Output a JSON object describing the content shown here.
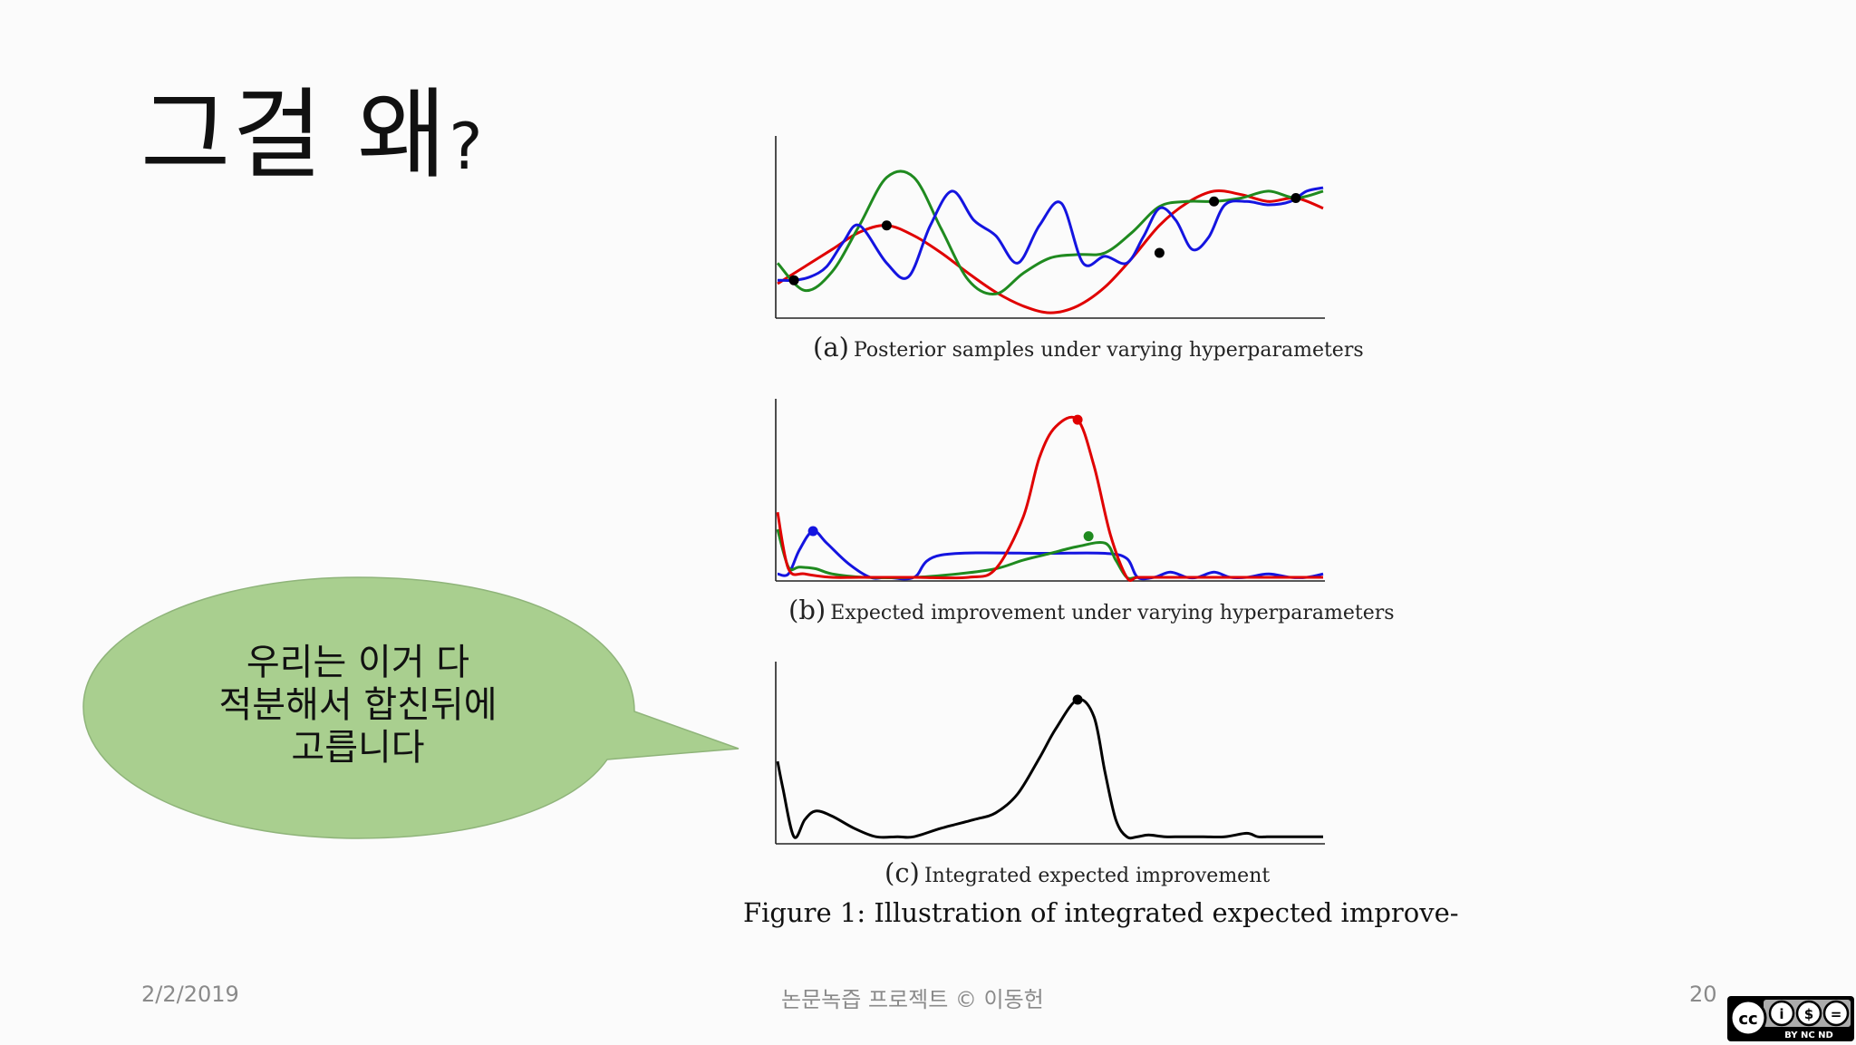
{
  "slide": {
    "title": "그걸 왜",
    "title_mark": "?",
    "bubble_lines": [
      "우리는 이거 다",
      "적분해서 합친뒤에",
      "고릅니다"
    ],
    "footer_date": "2/2/2019",
    "footer_center": "논문녹즙 프로젝트 © 이동헌",
    "page_number": "20",
    "license_badge": "BY NC ND",
    "bubble_color": "#a9cf8f"
  },
  "figure_caption": "Figure 1: Illustration of integrated expected improve-",
  "chart_data": [
    {
      "type": "line",
      "panel_label": "(a)",
      "caption": "Posterior samples under varying hyperparameters",
      "xlim": [
        0,
        1
      ],
      "ylim": [
        0,
        1
      ],
      "grid": false,
      "series": [
        {
          "color": "#e00000",
          "x": [
            0,
            0.05,
            0.1,
            0.15,
            0.2,
            0.25,
            0.3,
            0.35,
            0.4,
            0.45,
            0.5,
            0.55,
            0.6,
            0.65,
            0.7,
            0.75,
            0.8,
            0.85,
            0.9,
            0.95,
            1
          ],
          "y": [
            0.18,
            0.28,
            0.38,
            0.48,
            0.52,
            0.46,
            0.36,
            0.24,
            0.13,
            0.05,
            0.01,
            0.05,
            0.16,
            0.33,
            0.52,
            0.65,
            0.72,
            0.7,
            0.66,
            0.68,
            0.62
          ]
        },
        {
          "color": "#1f8a1f",
          "x": [
            0,
            0.05,
            0.1,
            0.15,
            0.2,
            0.25,
            0.3,
            0.35,
            0.4,
            0.45,
            0.5,
            0.55,
            0.6,
            0.65,
            0.7,
            0.75,
            0.8,
            0.85,
            0.9,
            0.95,
            1
          ],
          "y": [
            0.3,
            0.14,
            0.25,
            0.52,
            0.8,
            0.8,
            0.5,
            0.2,
            0.12,
            0.24,
            0.33,
            0.35,
            0.36,
            0.48,
            0.63,
            0.66,
            0.66,
            0.68,
            0.72,
            0.68,
            0.72
          ]
        },
        {
          "color": "#1414e0",
          "x": [
            0,
            0.03,
            0.06,
            0.09,
            0.12,
            0.15,
            0.2,
            0.24,
            0.28,
            0.32,
            0.36,
            0.4,
            0.44,
            0.48,
            0.52,
            0.56,
            0.6,
            0.64,
            0.67,
            0.7,
            0.73,
            0.76,
            0.79,
            0.82,
            0.86,
            0.9,
            0.94,
            0.97,
            1
          ],
          "y": [
            0.2,
            0.2,
            0.22,
            0.28,
            0.42,
            0.52,
            0.3,
            0.22,
            0.52,
            0.72,
            0.55,
            0.46,
            0.3,
            0.52,
            0.65,
            0.3,
            0.34,
            0.3,
            0.45,
            0.62,
            0.55,
            0.38,
            0.45,
            0.64,
            0.66,
            0.64,
            0.66,
            0.72,
            0.74
          ]
        }
      ],
      "markers": [
        {
          "x": 0.03,
          "y": 0.2
        },
        {
          "x": 0.2,
          "y": 0.52
        },
        {
          "x": 0.7,
          "y": 0.36
        },
        {
          "x": 0.8,
          "y": 0.66
        },
        {
          "x": 0.95,
          "y": 0.68
        }
      ]
    },
    {
      "type": "line",
      "panel_label": "(b)",
      "caption": "Expected improvement under varying hyperparameters",
      "xlim": [
        0,
        1
      ],
      "ylim": [
        0,
        1
      ],
      "grid": false,
      "series": [
        {
          "color": "#1414e0",
          "x": [
            0,
            0.02,
            0.04,
            0.065,
            0.09,
            0.13,
            0.17,
            0.2,
            0.25,
            0.3,
            0.5,
            0.6,
            0.64,
            0.66,
            0.69,
            0.72,
            0.75,
            0.77,
            0.8,
            0.83,
            0.86,
            0.9,
            0.94,
            0.97,
            1
          ],
          "y": [
            0.02,
            0.02,
            0.16,
            0.27,
            0.2,
            0.08,
            0.0,
            0.0,
            0.0,
            0.13,
            0.14,
            0.14,
            0.11,
            0.0,
            0.0,
            0.03,
            0.0,
            0.0,
            0.03,
            0.0,
            0.0,
            0.02,
            0.0,
            0.0,
            0.02
          ]
        },
        {
          "color": "#1f8a1f",
          "x": [
            0,
            0.02,
            0.04,
            0.07,
            0.1,
            0.16,
            0.25,
            0.33,
            0.4,
            0.45,
            0.5,
            0.55,
            0.6,
            0.62,
            0.64,
            0.66,
            0.7,
            1
          ],
          "y": [
            0.28,
            0.06,
            0.06,
            0.05,
            0.02,
            0.0,
            0.0,
            0.02,
            0.05,
            0.1,
            0.14,
            0.18,
            0.2,
            0.1,
            0.0,
            0.0,
            0.0,
            0.0
          ]
        },
        {
          "color": "#e00000",
          "x": [
            0,
            0.02,
            0.05,
            0.1,
            0.15,
            0.25,
            0.35,
            0.4,
            0.45,
            0.48,
            0.51,
            0.55,
            0.58,
            0.61,
            0.64,
            0.66,
            0.7,
            1
          ],
          "y": [
            0.38,
            0.05,
            0.02,
            0.0,
            0.0,
            0.0,
            0.0,
            0.05,
            0.35,
            0.7,
            0.88,
            0.92,
            0.65,
            0.25,
            0.0,
            0.0,
            0.0,
            0.0
          ]
        }
      ],
      "markers": [
        {
          "x": 0.065,
          "y": 0.27,
          "color": "#1414e0"
        },
        {
          "x": 0.55,
          "y": 0.92,
          "color": "#e00000"
        },
        {
          "x": 0.57,
          "y": 0.24,
          "color": "#1f8a1f"
        }
      ]
    },
    {
      "type": "line",
      "panel_label": "(c)",
      "caption": "Integrated expected improvement",
      "xlim": [
        0,
        1
      ],
      "ylim": [
        0,
        1
      ],
      "grid": false,
      "series": [
        {
          "color": "#000000",
          "x": [
            0,
            0.01,
            0.03,
            0.05,
            0.07,
            0.1,
            0.14,
            0.18,
            0.22,
            0.25,
            0.3,
            0.36,
            0.4,
            0.44,
            0.48,
            0.51,
            0.55,
            0.58,
            0.6,
            0.62,
            0.64,
            0.66,
            0.68,
            0.71,
            0.74,
            0.78,
            0.82,
            0.86,
            0.88,
            0.9,
            0.94,
            0.98,
            1
          ],
          "y": [
            0.46,
            0.3,
            0.02,
            0.12,
            0.17,
            0.14,
            0.07,
            0.02,
            0.02,
            0.02,
            0.07,
            0.12,
            0.16,
            0.27,
            0.48,
            0.65,
            0.82,
            0.72,
            0.4,
            0.12,
            0.02,
            0.02,
            0.03,
            0.02,
            0.02,
            0.02,
            0.02,
            0.04,
            0.02,
            0.02,
            0.02,
            0.02,
            0.02
          ]
        }
      ],
      "markers": [
        {
          "x": 0.55,
          "y": 0.82
        }
      ]
    }
  ]
}
